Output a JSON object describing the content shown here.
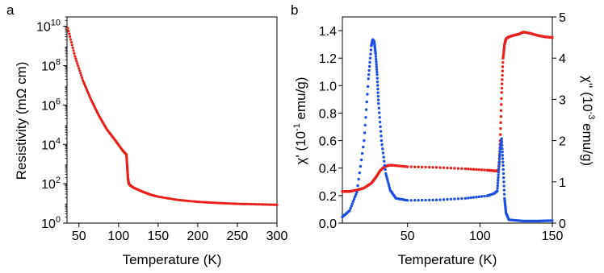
{
  "chart_data": [
    {
      "type": "scatter",
      "panel_label": "a",
      "xlabel": "Temperature (K)",
      "ylabel": "Resistivity (mΩ cm)",
      "y_scale": "log",
      "xlim": [
        35,
        300
      ],
      "ylim": [
        1,
        30000000000
      ],
      "x_ticks": [
        50,
        100,
        150,
        200,
        250,
        300
      ],
      "x_tick_labels": [
        "50",
        "100",
        "150",
        "200",
        "250",
        "300"
      ],
      "y_ticks": [
        1,
        100,
        10000,
        1000000,
        100000000,
        10000000000
      ],
      "y_tick_labels": [
        {
          "base": "10",
          "exp": "0"
        },
        {
          "base": "10",
          "exp": "2"
        },
        {
          "base": "10",
          "exp": "4"
        },
        {
          "base": "10",
          "exp": "6"
        },
        {
          "base": "10",
          "exp": "8"
        },
        {
          "base": "10",
          "exp": "10"
        }
      ],
      "series": [
        {
          "color": "#e8201d",
          "x": [
            36,
            45,
            55,
            65,
            75,
            85,
            95,
            105,
            110,
            111,
            112,
            113,
            115,
            120,
            130,
            140,
            150,
            175,
            200,
            225,
            250,
            275,
            300
          ],
          "y": [
            8000000000,
            300000000,
            18000000,
            2000000,
            300000,
            60000,
            18000,
            5000,
            3000,
            700,
            180,
            100,
            80,
            60,
            40,
            28,
            22,
            15,
            12,
            10.5,
            9.5,
            9,
            8.5
          ]
        }
      ]
    },
    {
      "type": "scatter",
      "panel_label": "b",
      "xlabel": "Temperature (K)",
      "ylabel_left": {
        "pre": "χ' (10",
        "exp": "-1",
        "post": " emu/g)"
      },
      "ylabel_right": {
        "pre": "χ'' (10",
        "exp": "-3",
        "post": " emu/g)"
      },
      "xlim": [
        5,
        150
      ],
      "ylim_left": [
        0,
        1.5
      ],
      "ylim_right": [
        0,
        5
      ],
      "x_ticks": [
        50,
        100,
        150
      ],
      "x_tick_labels": [
        "50",
        "100",
        "150"
      ],
      "y_left_ticks": [
        0,
        0.2,
        0.4,
        0.6,
        0.8,
        1.0,
        1.2,
        1.4
      ],
      "y_left_tick_labels": [
        "0.0",
        "0.2",
        "0.4",
        "0.6",
        "0.8",
        "1.0",
        "1.2",
        "1.4"
      ],
      "y_right_ticks": [
        0,
        1,
        2,
        3,
        4,
        5
      ],
      "y_right_tick_labels": [
        "0",
        "1",
        "2",
        "3",
        "4",
        "5"
      ],
      "series": [
        {
          "axis": "left",
          "color": "#e8201d",
          "x": [
            5,
            10,
            15,
            20,
            25,
            28,
            31,
            34,
            37,
            40,
            50,
            70,
            90,
            105,
            110,
            112,
            113,
            114,
            115,
            116,
            117,
            118,
            120,
            123,
            127,
            130,
            135,
            140,
            145,
            150
          ],
          "y": [
            0.23,
            0.23,
            0.24,
            0.255,
            0.29,
            0.33,
            0.38,
            0.41,
            0.42,
            0.42,
            0.41,
            0.405,
            0.395,
            0.385,
            0.38,
            0.38,
            0.39,
            0.6,
            0.95,
            1.2,
            1.3,
            1.34,
            1.355,
            1.365,
            1.375,
            1.39,
            1.38,
            1.365,
            1.355,
            1.35
          ]
        },
        {
          "axis": "right",
          "color": "#1f4fe0",
          "x": [
            5,
            10,
            15,
            20,
            23,
            25,
            26,
            27,
            28,
            29,
            30,
            32,
            35,
            38,
            42,
            50,
            70,
            90,
            105,
            110,
            112,
            113,
            114,
            115,
            116,
            117,
            118,
            120,
            130,
            140,
            150
          ],
          "y": [
            0.15,
            0.3,
            0.75,
            2.0,
            3.5,
            4.3,
            4.45,
            4.4,
            4.1,
            3.6,
            2.9,
            2.0,
            1.2,
            0.8,
            0.6,
            0.55,
            0.56,
            0.6,
            0.66,
            0.72,
            0.78,
            1.3,
            1.8,
            2.05,
            1.4,
            0.6,
            0.25,
            0.08,
            0.05,
            0.05,
            0.06
          ]
        }
      ]
    }
  ]
}
